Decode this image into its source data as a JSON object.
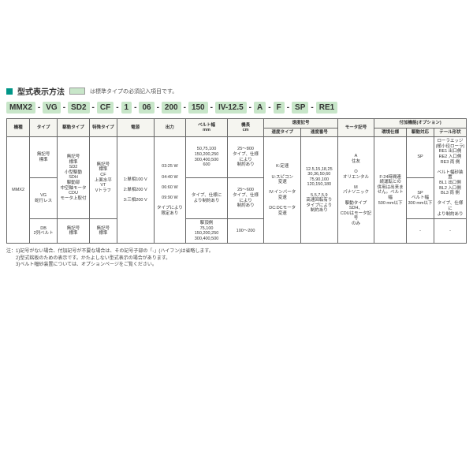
{
  "title": "型式表示方法",
  "title_note": "は標準タイプの必須記入項目です。",
  "model_segments": [
    "MMX2",
    "VG",
    "SD2",
    "CF",
    "1",
    "06",
    "200",
    "150",
    "IV-12.5",
    "A",
    "F",
    "SP",
    "RE1"
  ],
  "headers_row1": [
    "機種",
    "タイプ",
    "駆動タイプ",
    "特殊タイプ",
    "電源",
    "出力",
    "ベルト幅\nmm",
    "機長\ncm",
    "速度記号",
    "モータ記号",
    "付加機能(オプション)"
  ],
  "headers_row2_speed": [
    "速度タイプ",
    "速度番号"
  ],
  "headers_row2_opt": [
    "環境仕様",
    "駆動対応",
    "テール形状"
  ],
  "rows": {
    "r1": {
      "kishu": "MMX2",
      "type1": "無記号\n標準",
      "drive1": "無記号\n標準\nSD2\n小型駆動\nSDH\n駆動部\n中空軸モータ\nCDU\nモータ上取付",
      "special": "無記号\n標準\nCF\n上面水平\nVT\nVトラフ",
      "power": "1:単相100 V\n\n2:単相200 V\n\n3:三相200 V",
      "output": "03:25 W\n\n04:40 W\n\n06:60 W\n\n09:90 W\n\nタイプにより\n限定あり",
      "belt1": "50,75,100\n150,200,250\n300,400,500\n600",
      "len1": "25〜800\nタイプ、仕様\nにより\n制約あり",
      "speed_t": "K:定速\n\nU:スピコン\n変速\n\nIV:インバータ\n変速\n\nDC:DCモータ\n変速",
      "speed_n": "12.5,15,18,25\n30,36,50,60\n75,90,100\n120,150,180\n\n5,5,7,5,9\n高速回転有り\nタイプにより\n制約あり",
      "motor": "A\n住友\n\nO\nオリエンタル\n\nM\nパナソニック\n\n駆動タイプSDH、\nCDUはモータ記号\nのみ",
      "env": "F:24時間連\n続運転との\n併用は出来ま\nせん。ベルト幅\n500 mm以下",
      "da1": "SP",
      "tail": "ローラエッジ\n(極小径ローラ)\nRE1 出口側\nRE2 入口側\nRE3 両 側\n\nベルト幅砂装置\nBL1 出口側\nBL2 入口側\nBL3 両 側\n\nタイプ、仕様に\nより制約あり"
    },
    "r2": {
      "type": "VG\n蛇行レス",
      "belt": "タイプ、仕様に\nより制約あり",
      "len": "25〜600\nタイプ、仕様\nにより\n制約あり",
      "da": "SP\nベルト幅\n300 mm以下"
    },
    "r3": {
      "type": "DB\n2列ベルト",
      "drive": "無記号\n標準",
      "special": "無記号\n標準",
      "belt": "駆頂側\n75,100\n150,200,250\n300,400,500",
      "len": "100〜200",
      "da": "-",
      "tail": "-"
    }
  },
  "footnotes": [
    "注：1)記号がない場合、付加記号が不要な場合は、その記号子部の「-」(ハイフン)は省略します。",
    "　　2)型式銘板のための表示です。かたよしない型式表示の場合があります。",
    "　　3)ベルト幅砂装置については、オプションページをご覧ください。"
  ]
}
